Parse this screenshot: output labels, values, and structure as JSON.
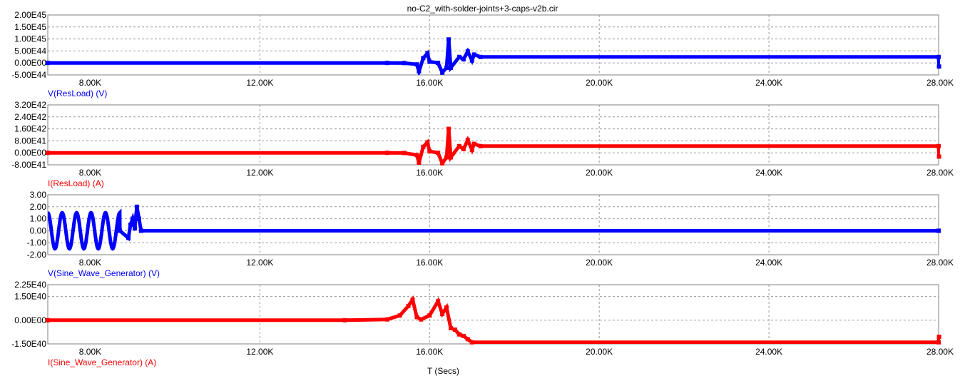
{
  "title": "no-C2_with-solder-joints+3-caps-v2b.cir",
  "xaxis_label": "T (Secs)",
  "colors": {
    "blue": "#0000ff",
    "red": "#ff0000",
    "frame": "#808080",
    "grid": "#9a9a9a",
    "text": "#000000"
  },
  "chart_data": [
    {
      "type": "line",
      "series": [
        {
          "name": "V(ResLoad) (V)",
          "color": "#0000ff",
          "points": [
            [
              7000,
              0
            ],
            [
              15000,
              0
            ],
            [
              15400,
              -5e+42
            ],
            [
              15700,
              -6e+43
            ],
            [
              15750,
              -3.5e+44
            ],
            [
              15850,
              2e+44
            ],
            [
              15950,
              4e+44
            ],
            [
              16000,
              5e+43
            ],
            [
              16200,
              0
            ],
            [
              16300,
              -4e+44
            ],
            [
              16400,
              -2e+44
            ],
            [
              16450,
              9.8e+44
            ],
            [
              16500,
              -2e+44
            ],
            [
              16700,
              2.5e+44
            ],
            [
              16800,
              1.5e+44
            ],
            [
              16900,
              4.8e+44
            ],
            [
              17000,
              1e+44
            ],
            [
              17050,
              3.5e+44
            ],
            [
              17200,
              2.5e+44
            ],
            [
              28000,
              2.5e+44
            ],
            [
              28010,
              -1.5e+44
            ]
          ]
        }
      ],
      "xlim": [
        7000,
        28000
      ],
      "ylim": [
        -5e+44,
        2e+45
      ],
      "xticks": [
        "8.00K",
        "12.00K",
        "16.00K",
        "20.00K",
        "24.00K",
        "28.00K"
      ],
      "yticks": [
        "2.00E45",
        "1.50E45",
        "1.00E45",
        "5.00E44",
        "0.00E00",
        "-5.00E44"
      ]
    },
    {
      "type": "line",
      "series": [
        {
          "name": "I(ResLoad) (A)",
          "color": "#ff0000",
          "points": [
            [
              7000,
              0
            ],
            [
              15000,
              0
            ],
            [
              15400,
              -1e+40
            ],
            [
              15700,
              -1.5e+41
            ],
            [
              15750,
              -6.5e+41
            ],
            [
              15850,
              4e+41
            ],
            [
              15950,
              7e+41
            ],
            [
              16000,
              1e+41
            ],
            [
              16200,
              0
            ],
            [
              16300,
              -7e+41
            ],
            [
              16400,
              -3e+41
            ],
            [
              16450,
              1.6e+42
            ],
            [
              16500,
              -3e+41
            ],
            [
              16700,
              4.5e+41
            ],
            [
              16800,
              2.5e+41
            ],
            [
              16900,
              8.5e+41
            ],
            [
              17000,
              2e+41
            ],
            [
              17050,
              6e+41
            ],
            [
              17200,
              4.5e+41
            ],
            [
              28000,
              4.5e+41
            ],
            [
              28010,
              -2.5e+41
            ]
          ]
        }
      ],
      "xlim": [
        7000,
        28000
      ],
      "ylim": [
        -8e+41,
        3.2e+42
      ],
      "xticks": [
        "8.00K",
        "12.00K",
        "16.00K",
        "20.00K",
        "24.00K",
        "28.00K"
      ],
      "yticks": [
        "3.20E42",
        "2.40E42",
        "1.60E42",
        "8.00E41",
        "0.00E00",
        "-8.00E41"
      ]
    },
    {
      "type": "line",
      "series": [
        {
          "name": "V(Sine_Wave_Generator) (V)",
          "color": "#0000ff",
          "sine": {
            "amplitude": 1.5,
            "from": 7000,
            "to": 8700,
            "period": 340
          },
          "points": [
            [
              8700,
              0
            ],
            [
              8900,
              -0.6
            ],
            [
              8950,
              0.5
            ],
            [
              9000,
              1
            ],
            [
              9050,
              0.2
            ],
            [
              9100,
              2
            ],
            [
              9150,
              1
            ],
            [
              9200,
              0
            ],
            [
              28000,
              0
            ]
          ]
        }
      ],
      "xlim": [
        7000,
        28000
      ],
      "ylim": [
        -2.0,
        3.0
      ],
      "xticks": [
        "8.00K",
        "12.00K",
        "16.00K",
        "20.00K",
        "24.00K",
        "28.00K"
      ],
      "yticks": [
        "3.00",
        "2.00",
        "1.00",
        "0.00",
        "-1.00",
        "-2.00"
      ]
    },
    {
      "type": "line",
      "series": [
        {
          "name": "I(Sine_Wave_Generator) (A)",
          "color": "#ff0000",
          "points": [
            [
              7000,
              0
            ],
            [
              14000,
              0
            ],
            [
              15000,
              5e+38
            ],
            [
              15300,
              3e+39
            ],
            [
              15500,
              9e+39
            ],
            [
              15600,
              1.3e+40
            ],
            [
              15700,
              2e+39
            ],
            [
              15800,
              5e+38
            ],
            [
              16000,
              3e+39
            ],
            [
              16200,
              1.2e+40
            ],
            [
              16300,
              4e+39
            ],
            [
              16400,
              8e+39
            ],
            [
              16500,
              -5e+39
            ],
            [
              16600,
              -6e+39
            ],
            [
              16700,
              -9e+39
            ],
            [
              16800,
              -1e+40
            ],
            [
              16900,
              -1.2e+40
            ],
            [
              17000,
              -1.4e+40
            ],
            [
              28000,
              -1.4e+40
            ],
            [
              28010,
              -1.05e+40
            ]
          ]
        }
      ],
      "xlim": [
        7000,
        28000
      ],
      "ylim": [
        -1.5e+40,
        2.25e+40
      ],
      "xticks": [
        "8.00K",
        "12.00K",
        "16.00K",
        "20.00K",
        "24.00K",
        "28.00K"
      ],
      "yticks": [
        "2.25E40",
        "1.50E40",
        "0.00E00",
        "-1.50E40"
      ],
      "ytick_values": [
        2.25e+40,
        1.5e+40,
        0,
        -1.5e+40
      ]
    }
  ]
}
